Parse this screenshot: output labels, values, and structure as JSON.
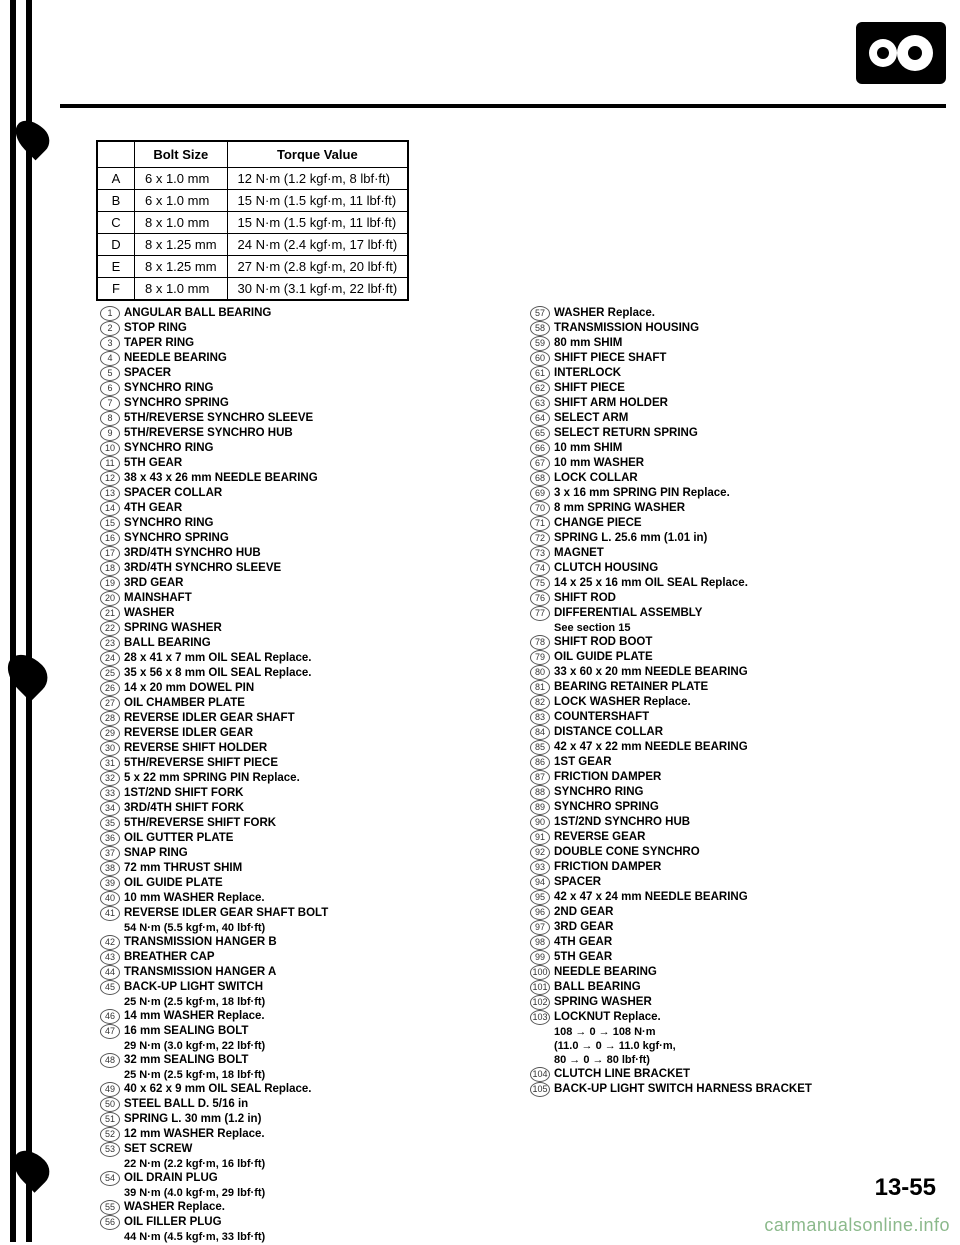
{
  "page_number": "13-55",
  "watermark": "carmanualsonline.info",
  "torque_table": {
    "headers": [
      "",
      "Bolt Size",
      "Torque Value"
    ],
    "rows": [
      [
        "A",
        "6 x 1.0 mm",
        "12 N·m (1.2 kgf·m, 8 lbf·ft)"
      ],
      [
        "B",
        "6 x 1.0 mm",
        "15 N·m (1.5 kgf·m, 11 lbf·ft)"
      ],
      [
        "C",
        "8 x 1.0 mm",
        "15 N·m (1.5 kgf·m, 11 lbf·ft)"
      ],
      [
        "D",
        "8 x 1.25 mm",
        "24 N·m (2.4 kgf·m, 17 lbf·ft)"
      ],
      [
        "E",
        "8 x 1.25 mm",
        "27 N·m (2.8 kgf·m, 20 lbf·ft)"
      ],
      [
        "F",
        "8 x 1.0 mm",
        "30 N·m (3.1 kgf·m, 22 lbf·ft)"
      ]
    ]
  },
  "parts_col1": [
    {
      "n": "1",
      "t": "ANGULAR BALL BEARING"
    },
    {
      "n": "2",
      "t": "STOP RING"
    },
    {
      "n": "3",
      "t": "TAPER RING"
    },
    {
      "n": "4",
      "t": "NEEDLE BEARING"
    },
    {
      "n": "5",
      "t": "SPACER"
    },
    {
      "n": "6",
      "t": "SYNCHRO RING"
    },
    {
      "n": "7",
      "t": "SYNCHRO SPRING"
    },
    {
      "n": "8",
      "t": "5TH/REVERSE SYNCHRO SLEEVE"
    },
    {
      "n": "9",
      "t": "5TH/REVERSE SYNCHRO HUB"
    },
    {
      "n": "10",
      "t": "SYNCHRO RING"
    },
    {
      "n": "11",
      "t": "5TH GEAR"
    },
    {
      "n": "12",
      "t": "38 x 43 x 26 mm NEEDLE BEARING"
    },
    {
      "n": "13",
      "t": "SPACER COLLAR"
    },
    {
      "n": "14",
      "t": "4TH GEAR"
    },
    {
      "n": "15",
      "t": "SYNCHRO RING"
    },
    {
      "n": "16",
      "t": "SYNCHRO SPRING"
    },
    {
      "n": "17",
      "t": "3RD/4TH SYNCHRO HUB"
    },
    {
      "n": "18",
      "t": "3RD/4TH SYNCHRO SLEEVE"
    },
    {
      "n": "19",
      "t": "3RD GEAR"
    },
    {
      "n": "20",
      "t": "MAINSHAFT"
    },
    {
      "n": "21",
      "t": "WASHER"
    },
    {
      "n": "22",
      "t": "SPRING WASHER"
    },
    {
      "n": "23",
      "t": "BALL BEARING"
    },
    {
      "n": "24",
      "t": "28 x 41 x 7 mm OIL SEAL Replace."
    },
    {
      "n": "25",
      "t": "35 x 56 x 8 mm OIL SEAL Replace."
    },
    {
      "n": "26",
      "t": "14 x 20 mm DOWEL PIN"
    },
    {
      "n": "27",
      "t": "OIL CHAMBER PLATE"
    },
    {
      "n": "28",
      "t": "REVERSE IDLER GEAR SHAFT"
    },
    {
      "n": "29",
      "t": "REVERSE IDLER GEAR"
    },
    {
      "n": "30",
      "t": "REVERSE SHIFT HOLDER"
    },
    {
      "n": "31",
      "t": "5TH/REVERSE SHIFT PIECE"
    },
    {
      "n": "32",
      "t": "5 x 22 mm SPRING PIN Replace."
    },
    {
      "n": "33",
      "t": "1ST/2ND SHIFT FORK"
    },
    {
      "n": "34",
      "t": "3RD/4TH SHIFT FORK"
    },
    {
      "n": "35",
      "t": "5TH/REVERSE SHIFT FORK"
    },
    {
      "n": "36",
      "t": "OIL GUTTER PLATE"
    },
    {
      "n": "37",
      "t": "SNAP RING"
    },
    {
      "n": "38",
      "t": "72 mm THRUST SHIM"
    },
    {
      "n": "39",
      "t": "OIL GUIDE PLATE"
    },
    {
      "n": "40",
      "t": "10 mm WASHER Replace."
    },
    {
      "n": "41",
      "t": "REVERSE IDLER GEAR SHAFT BOLT",
      "s": "54 N·m (5.5 kgf·m, 40 lbf·ft)"
    },
    {
      "n": "42",
      "t": "TRANSMISSION HANGER B"
    },
    {
      "n": "43",
      "t": "BREATHER CAP"
    },
    {
      "n": "44",
      "t": "TRANSMISSION HANGER A"
    },
    {
      "n": "45",
      "t": "BACK-UP LIGHT SWITCH",
      "s": "25 N·m (2.5 kgf·m, 18 lbf·ft)"
    },
    {
      "n": "46",
      "t": "14 mm WASHER Replace."
    },
    {
      "n": "47",
      "t": "16 mm SEALING BOLT",
      "s": "29 N·m (3.0 kgf·m, 22 lbf·ft)"
    },
    {
      "n": "48",
      "t": "32 mm SEALING BOLT",
      "s": "25 N·m (2.5 kgf·m, 18 lbf·ft)"
    },
    {
      "n": "49",
      "t": "40 x 62 x 9 mm OIL SEAL Replace."
    },
    {
      "n": "50",
      "t": "STEEL BALL D. 5/16 in"
    },
    {
      "n": "51",
      "t": "SPRING L. 30 mm (1.2 in)"
    },
    {
      "n": "52",
      "t": "12 mm WASHER Replace."
    },
    {
      "n": "53",
      "t": "SET SCREW",
      "s": "22 N·m (2.2 kgf·m, 16 lbf·ft)"
    },
    {
      "n": "54",
      "t": "OIL DRAIN PLUG",
      "s": "39 N·m (4.0 kgf·m, 29 lbf·ft)"
    },
    {
      "n": "55",
      "t": "WASHER Replace."
    },
    {
      "n": "56",
      "t": "OIL FILLER PLUG",
      "s": "44 N·m (4.5 kgf·m, 33 lbf·ft)"
    }
  ],
  "parts_col2": [
    {
      "n": "57",
      "t": "WASHER Replace."
    },
    {
      "n": "58",
      "t": "TRANSMISSION HOUSING"
    },
    {
      "n": "59",
      "t": "80 mm SHIM"
    },
    {
      "n": "60",
      "t": "SHIFT PIECE SHAFT"
    },
    {
      "n": "61",
      "t": "INTERLOCK"
    },
    {
      "n": "62",
      "t": "SHIFT PIECE"
    },
    {
      "n": "63",
      "t": "SHIFT ARM HOLDER"
    },
    {
      "n": "64",
      "t": "SELECT ARM"
    },
    {
      "n": "65",
      "t": "SELECT RETURN SPRING"
    },
    {
      "n": "66",
      "t": "10 mm SHIM"
    },
    {
      "n": "67",
      "t": "10 mm WASHER"
    },
    {
      "n": "68",
      "t": "LOCK COLLAR"
    },
    {
      "n": "69",
      "t": "3 x 16 mm SPRING PIN Replace."
    },
    {
      "n": "70",
      "t": "8 mm SPRING WASHER"
    },
    {
      "n": "71",
      "t": "CHANGE PIECE"
    },
    {
      "n": "72",
      "t": "SPRING L. 25.6 mm (1.01 in)"
    },
    {
      "n": "73",
      "t": "MAGNET"
    },
    {
      "n": "74",
      "t": "CLUTCH HOUSING"
    },
    {
      "n": "75",
      "t": "14 x 25 x 16 mm OIL SEAL Replace."
    },
    {
      "n": "76",
      "t": "SHIFT ROD"
    },
    {
      "n": "77",
      "t": "DIFFERENTIAL ASSEMBLY",
      "s": "See section 15"
    },
    {
      "n": "78",
      "t": "SHIFT ROD BOOT"
    },
    {
      "n": "79",
      "t": "OIL GUIDE PLATE"
    },
    {
      "n": "80",
      "t": "33 x 60 x 20 mm NEEDLE BEARING"
    },
    {
      "n": "81",
      "t": "BEARING RETAINER PLATE"
    },
    {
      "n": "82",
      "t": "LOCK WASHER Replace."
    },
    {
      "n": "83",
      "t": "COUNTERSHAFT"
    },
    {
      "n": "84",
      "t": "DISTANCE COLLAR"
    },
    {
      "n": "85",
      "t": "42 x 47 x 22 mm NEEDLE BEARING"
    },
    {
      "n": "86",
      "t": "1ST GEAR"
    },
    {
      "n": "87",
      "t": "FRICTION DAMPER"
    },
    {
      "n": "88",
      "t": "SYNCHRO RING"
    },
    {
      "n": "89",
      "t": "SYNCHRO SPRING"
    },
    {
      "n": "90",
      "t": "1ST/2ND SYNCHRO HUB"
    },
    {
      "n": "91",
      "t": "REVERSE GEAR"
    },
    {
      "n": "92",
      "t": "DOUBLE CONE SYNCHRO"
    },
    {
      "n": "93",
      "t": "FRICTION DAMPER"
    },
    {
      "n": "94",
      "t": "SPACER"
    },
    {
      "n": "95",
      "t": "42 x 47 x 24 mm NEEDLE BEARING"
    },
    {
      "n": "96",
      "t": "2ND GEAR"
    },
    {
      "n": "97",
      "t": "3RD GEAR"
    },
    {
      "n": "98",
      "t": "4TH GEAR"
    },
    {
      "n": "99",
      "t": "5TH GEAR"
    },
    {
      "n": "100",
      "t": "NEEDLE BEARING"
    },
    {
      "n": "101",
      "t": "BALL BEARING"
    },
    {
      "n": "102",
      "t": "SPRING WASHER"
    },
    {
      "n": "103",
      "t": "LOCKNUT Replace.",
      "s": "108 → 0 → 108 N·m\n(11.0 → 0 → 11.0 kgf·m,\n80 → 0 → 80 lbf·ft)"
    },
    {
      "n": "104",
      "t": "CLUTCH LINE BRACKET"
    },
    {
      "n": "105",
      "t": "BACK-UP LIGHT SWITCH HARNESS BRACKET"
    }
  ]
}
